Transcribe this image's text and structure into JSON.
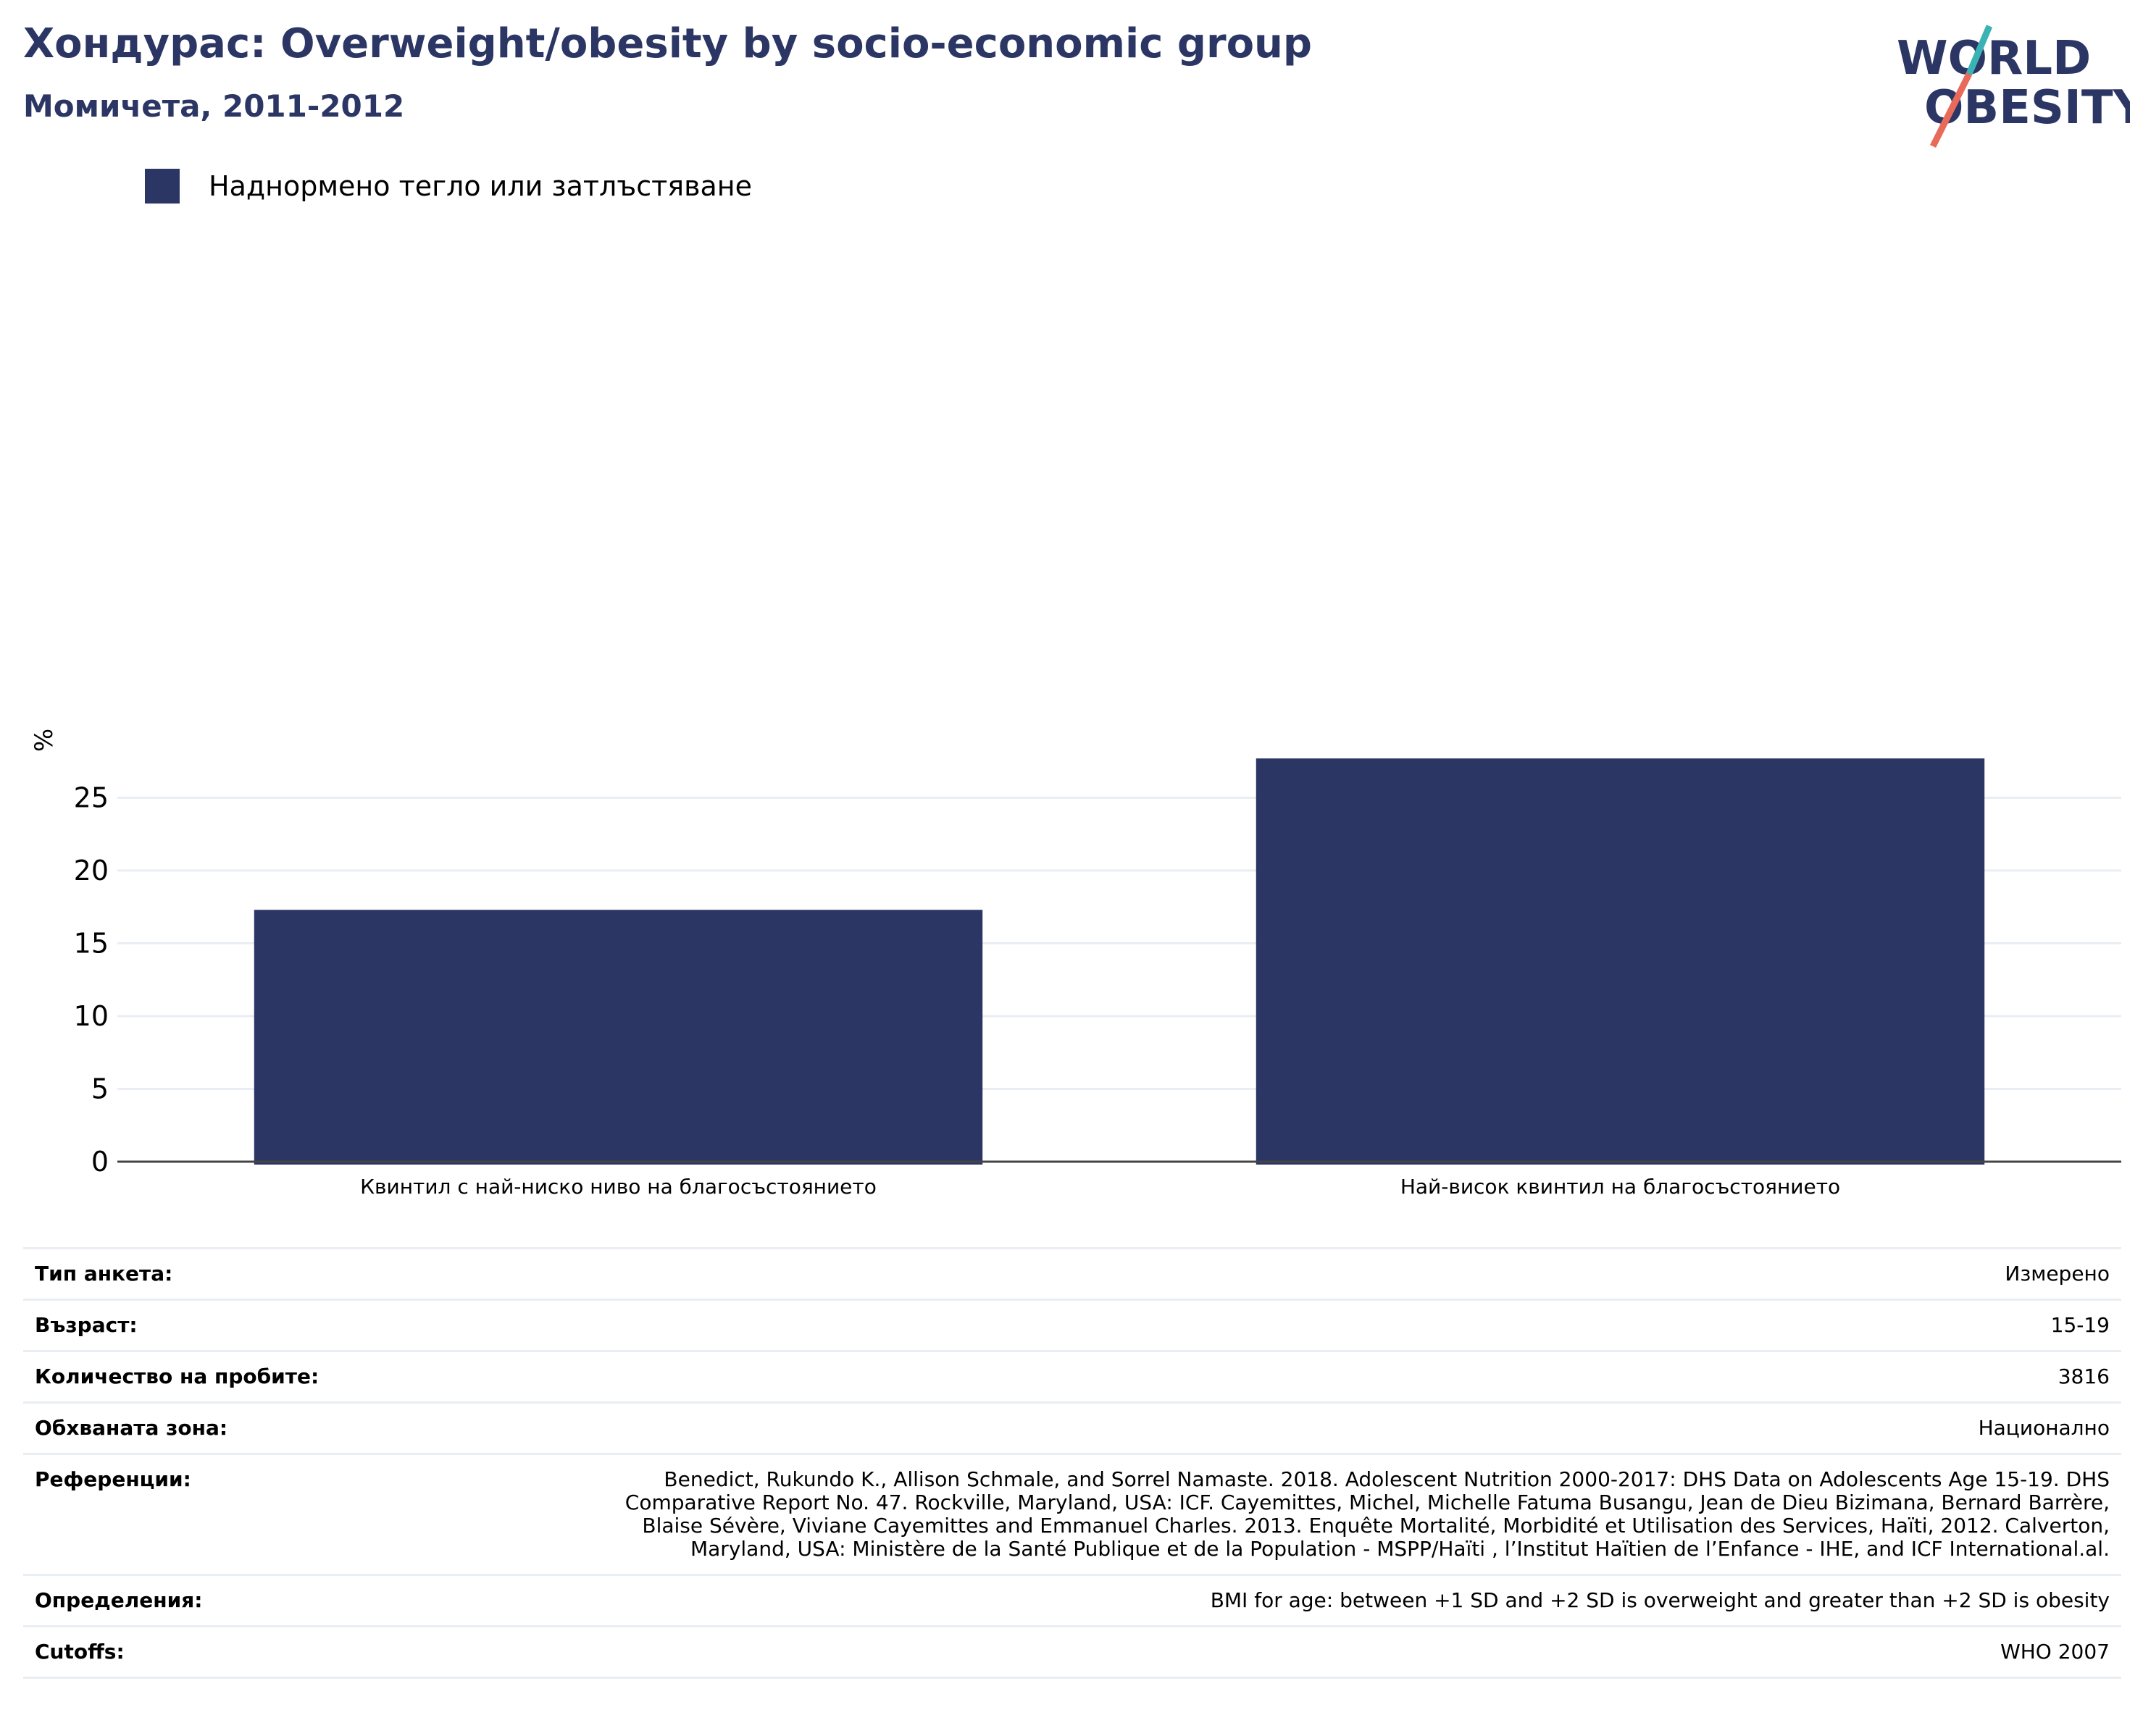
{
  "header": {
    "title": "Хондурас: Overweight/obesity by socio-economic group",
    "subtitle": "Момичета, 2011-2012"
  },
  "logo": {
    "line1": "WORLD",
    "line2": "OBESITY"
  },
  "legend": {
    "label": "Наднормено тегло или затлъстяване"
  },
  "colors": {
    "bar": "#2b3664",
    "title": "#2b3664",
    "grid": "#e9eef4",
    "logo_teal": "#3bb3b5",
    "logo_coral": "#e86a5a"
  },
  "chart_data": {
    "type": "bar",
    "categories": [
      "Квинтил с най-ниско ниво на благосъстоянието",
      "Най-висок квинтил на благосъстоянието"
    ],
    "series": [
      {
        "name": "Наднормено тегло или затлъстяване",
        "values": [
          17.3,
          27.7
        ]
      }
    ],
    "ylabel": "%",
    "yticks": [
      0,
      5,
      10,
      15,
      20,
      25
    ],
    "ylim": [
      0,
      30
    ],
    "grid": true,
    "legend_position": "top-left"
  },
  "info": {
    "rows": [
      {
        "key": "Тип анкета:",
        "value": "Измерено"
      },
      {
        "key": "Възраст:",
        "value": "15-19"
      },
      {
        "key": "Количество на пробите:",
        "value": "3816"
      },
      {
        "key": "Обхваната зона:",
        "value": "Национално"
      },
      {
        "key": "Референции:",
        "value": "Benedict, Rukundo K., Allison Schmale, and Sorrel Namaste. 2018. Adolescent Nutrition 2000-2017: DHS Data on Adolescents Age 15-19. DHS Comparative Report No. 47. Rockville, Maryland, USA: ICF. Cayemittes, Michel, Michelle Fatuma Busangu, Jean de Dieu Bizimana, Bernard Barrère, Blaise Sévère, Viviane Cayemittes and Emmanuel Charles. 2013. Enquête Mortalité, Morbidité et Utilisation des Services, Haïti, 2012. Calverton, Maryland, USA: Ministère de la Santé Publique et de la Population - MSPP/Haïti , l’Institut Haïtien de l’Enfance - IHE, and ICF International.al."
      },
      {
        "key": "Определения:",
        "value": "BMI for age: between +1 SD and +2 SD is overweight and greater than +2 SD is obesity"
      },
      {
        "key": "Cutoffs:",
        "value": "WHO 2007"
      }
    ]
  }
}
